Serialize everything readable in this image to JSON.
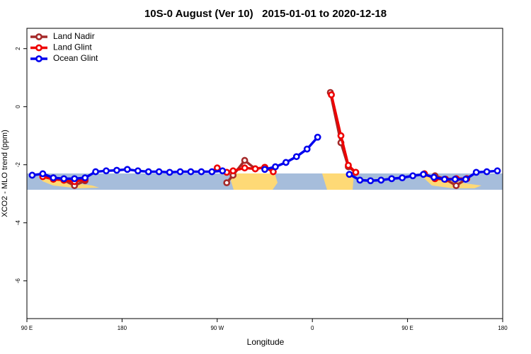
{
  "chart_data": {
    "type": "line",
    "title": "10S-0 August (Ver 10)   2015-01-01 to 2020-12-18",
    "xlabel": "Longitude",
    "ylabel": "XCO2 - MLO trend (ppm)",
    "xlim": [
      90,
      540
    ],
    "ylim": [
      -7.3,
      2.7
    ],
    "xticks": [
      {
        "value": 90,
        "label": "90 E"
      },
      180,
      {
        "value": 270,
        "label": "90 W"
      },
      {
        "value": 360,
        "label": "0"
      },
      {
        "value": 450,
        "label": "90 E"
      },
      {
        "value": 540,
        "label": "180"
      }
    ],
    "yticks": [
      2,
      0,
      -2,
      -4,
      -6
    ],
    "legend": "top-left",
    "series": [
      {
        "name": "Land Nadir",
        "color": "#a52a2a",
        "x": [
          105,
          115,
          125,
          135,
          145,
          null,
          279,
          285,
          296,
          306,
          315,
          null,
          377,
          387,
          394,
          401,
          null,
          476,
          486,
          496,
          506
        ],
        "values": [
          -2.36,
          -2.45,
          -2.53,
          -2.72,
          -2.55,
          null,
          -2.62,
          -2.36,
          -1.85,
          -2.14,
          -2.09,
          null,
          0.49,
          -1.24,
          -2.07,
          -2.26,
          null,
          -2.38,
          -2.5,
          -2.72,
          -2.48
        ]
      },
      {
        "name": "Land Glint",
        "color": "#ee0000",
        "x": [
          105,
          115,
          125,
          135,
          145,
          null,
          270,
          279,
          285,
          296,
          306,
          315,
          323,
          null,
          378,
          387,
          394,
          401,
          null,
          466,
          476,
          486,
          496,
          506
        ],
        "values": [
          -2.41,
          -2.5,
          -2.53,
          -2.58,
          -2.5,
          null,
          -2.11,
          -2.26,
          -2.21,
          -2.11,
          -2.14,
          -2.09,
          -2.24,
          null,
          0.41,
          -1.0,
          -2.02,
          -2.26,
          null,
          -2.31,
          -2.48,
          -2.5,
          -2.48,
          -2.48
        ]
      },
      {
        "name": "Ocean Glint",
        "color": "#0000ee",
        "x": [
          95,
          105,
          115,
          125,
          135,
          145,
          155,
          165,
          175,
          185,
          195,
          205,
          215,
          225,
          235,
          245,
          255,
          265,
          275,
          null,
          315,
          325,
          335,
          345,
          355,
          365,
          null,
          395,
          405,
          415,
          425,
          435,
          445,
          455,
          465,
          475,
          485,
          495,
          505,
          515,
          525,
          535
        ],
        "values": [
          -2.36,
          -2.31,
          -2.45,
          -2.48,
          -2.48,
          -2.45,
          -2.24,
          -2.21,
          -2.19,
          -2.16,
          -2.21,
          -2.24,
          -2.24,
          -2.26,
          -2.24,
          -2.24,
          -2.24,
          -2.24,
          -2.21,
          null,
          -2.16,
          -2.07,
          -1.92,
          -1.72,
          -1.46,
          -1.05,
          null,
          -2.33,
          -2.53,
          -2.55,
          -2.53,
          -2.48,
          -2.45,
          -2.38,
          -2.33,
          -2.43,
          -2.5,
          -2.5,
          -2.5,
          -2.26,
          -2.24,
          -2.21
        ]
      }
    ]
  }
}
